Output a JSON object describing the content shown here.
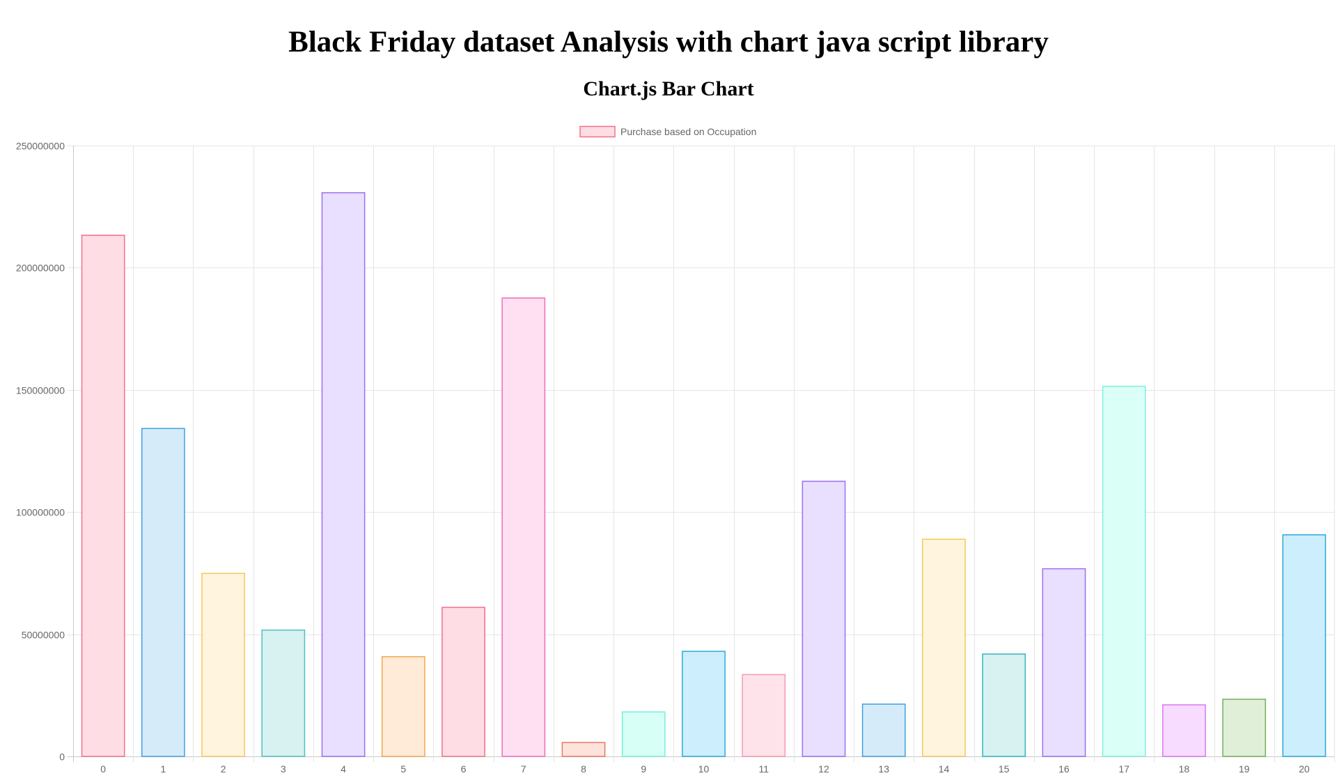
{
  "page": {
    "title": "Black Friday dataset Analysis with chart java script library",
    "subtitle": "Chart.js Bar Chart"
  },
  "chart_data": {
    "type": "bar",
    "title": "",
    "xlabel": "",
    "ylabel": "",
    "ylim": [
      0,
      250000000
    ],
    "yticks": [
      0,
      50000000,
      100000000,
      150000000,
      200000000,
      250000000
    ],
    "grid": true,
    "legend_position": "top-center",
    "categories": [
      "0",
      "1",
      "2",
      "3",
      "4",
      "5",
      "6",
      "7",
      "8",
      "9",
      "10",
      "11",
      "12",
      "13",
      "14",
      "15",
      "16",
      "17",
      "18",
      "19",
      "20"
    ],
    "series": [
      {
        "name": "Purchase based on Occupation",
        "legend_fill": "#ffdde4",
        "legend_border": "#f07088",
        "values": [
          213300000,
          134200000,
          74900000,
          51700000,
          230700000,
          40800000,
          61000000,
          187600000,
          5700000,
          18200000,
          43000000,
          33500000,
          112600000,
          21400000,
          88900000,
          41900000,
          76800000,
          151500000,
          21100000,
          23400000,
          90700000
        ]
      }
    ],
    "bar_colors": [
      {
        "fill": "#ffdde4",
        "border": "#f07088"
      },
      {
        "fill": "#d6ebfa",
        "border": "#3fa0e0"
      },
      {
        "fill": "#fff4dd",
        "border": "#f6c85e"
      },
      {
        "fill": "#d8f1f1",
        "border": "#4cc0c0"
      },
      {
        "fill": "#e9dfff",
        "border": "#9c6ef0"
      },
      {
        "fill": "#ffebd8",
        "border": "#f4a64a"
      },
      {
        "fill": "#ffdde4",
        "border": "#f07088"
      },
      {
        "fill": "#ffe0f3",
        "border": "#ee6cb8"
      },
      {
        "fill": "#fde3dc",
        "border": "#e87860"
      },
      {
        "fill": "#d8fff6",
        "border": "#70f0d8"
      },
      {
        "fill": "#cdeefc",
        "border": "#2aaad8"
      },
      {
        "fill": "#ffe3ea",
        "border": "#f898ae"
      },
      {
        "fill": "#e9dfff",
        "border": "#9c6ef0"
      },
      {
        "fill": "#d6ebfa",
        "border": "#3fa0e0"
      },
      {
        "fill": "#fff4dd",
        "border": "#f6c85e"
      },
      {
        "fill": "#d8f1f1",
        "border": "#30b4c4"
      },
      {
        "fill": "#e9dfff",
        "border": "#9c6ef0"
      },
      {
        "fill": "#dafff7",
        "border": "#80eedc"
      },
      {
        "fill": "#f8dcff",
        "border": "#d878f0"
      },
      {
        "fill": "#e0efd8",
        "border": "#78b05c"
      },
      {
        "fill": "#cdeefc",
        "border": "#2aaad8"
      }
    ]
  }
}
